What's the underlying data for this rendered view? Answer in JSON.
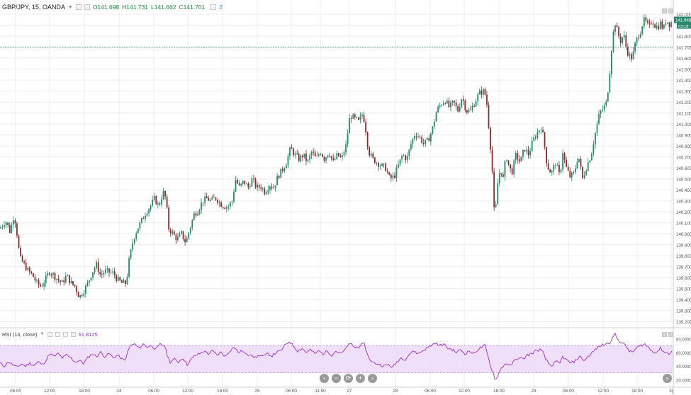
{
  "header": {
    "symbol": "GBP/JPY, 15, OANDA",
    "open": "O141.698",
    "high": "H141.731",
    "low": "L141.662",
    "close": "C141.701",
    "indicator_count": "2"
  },
  "rsi": {
    "title": "RSI (14, close)",
    "value": "61.8125",
    "axis_labels": [
      "80.0000",
      "60.0000",
      "40.0000",
      "20.0000"
    ]
  },
  "price_axis": {
    "labels": [
      "142.000",
      "141.900",
      "141.800",
      "141.700",
      "141.600",
      "141.500",
      "141.400",
      "141.300",
      "141.200",
      "141.100",
      "141.000",
      "140.900",
      "140.800",
      "140.700",
      "140.600",
      "140.500",
      "140.400",
      "140.300",
      "140.200",
      "140.100",
      "140.000",
      "139.900",
      "139.800",
      "139.700",
      "139.600",
      "139.500",
      "139.400",
      "139.300",
      "139.200"
    ],
    "last_price_tag": "141.946",
    "countdown_tag": "03:18"
  },
  "time_axis": {
    "labels": [
      "06:00",
      "12:00",
      "18:00",
      "24",
      "06:00",
      "12:00",
      "18:00",
      "25",
      "06:00",
      "11:50",
      "27",
      "28",
      "06:00",
      "12:00",
      "18:00",
      "29",
      "06:00",
      "12:00",
      "18:00",
      "3("
    ]
  },
  "nav": {
    "labels": [
      "‹",
      "−",
      "⟳",
      "+",
      "›"
    ],
    "goto": "»"
  },
  "colors": {
    "up": "#26896b",
    "down": "#8b2a2a",
    "rsi_line": "#9b30c8",
    "rsi_band": "#ecd9f7",
    "hline": "#2d7a6a",
    "grid": "#ececec"
  },
  "chart_data": [
    {
      "type": "candlestick",
      "title": "GBP/JPY, 15, OANDA",
      "ylim": [
        139.15,
        142.13
      ],
      "price_line": 141.701,
      "last_price": 141.946,
      "x_ticks": [
        "06:00",
        "12:00",
        "18:00",
        "24",
        "06:00",
        "12:00",
        "18:00",
        "25",
        "06:00",
        "11:50",
        "27",
        "28",
        "06:00",
        "12:00",
        "18:00",
        "29",
        "06:00",
        "12:00",
        "18:00",
        "3("
      ],
      "path": [
        [
          0,
          140.05
        ],
        [
          8,
          140.12
        ],
        [
          14,
          140.02
        ],
        [
          20,
          140.18
        ],
        [
          24,
          140.0
        ],
        [
          28,
          139.78
        ],
        [
          34,
          139.72
        ],
        [
          40,
          139.66
        ],
        [
          46,
          139.62
        ],
        [
          52,
          139.55
        ],
        [
          58,
          139.52
        ],
        [
          64,
          139.58
        ],
        [
          70,
          139.66
        ],
        [
          76,
          139.62
        ],
        [
          82,
          139.58
        ],
        [
          88,
          139.55
        ],
        [
          94,
          139.62
        ],
        [
          100,
          139.55
        ],
        [
          106,
          139.52
        ],
        [
          112,
          139.42
        ],
        [
          118,
          139.48
        ],
        [
          124,
          139.55
        ],
        [
          130,
          139.65
        ],
        [
          136,
          139.72
        ],
        [
          142,
          139.62
        ],
        [
          148,
          139.66
        ],
        [
          154,
          139.65
        ],
        [
          160,
          139.64
        ],
        [
          166,
          139.58
        ],
        [
          172,
          139.55
        ],
        [
          178,
          139.55
        ],
        [
          182,
          139.75
        ],
        [
          188,
          139.95
        ],
        [
          194,
          140.05
        ],
        [
          200,
          140.12
        ],
        [
          206,
          140.2
        ],
        [
          212,
          140.25
        ],
        [
          218,
          140.32
        ],
        [
          224,
          140.25
        ],
        [
          230,
          140.38
        ],
        [
          234,
          140.32
        ],
        [
          238,
          140.05
        ],
        [
          244,
          140.0
        ],
        [
          250,
          139.95
        ],
        [
          256,
          140.0
        ],
        [
          262,
          139.92
        ],
        [
          268,
          140.05
        ],
        [
          274,
          140.18
        ],
        [
          280,
          140.22
        ],
        [
          286,
          140.3
        ],
        [
          292,
          140.32
        ],
        [
          298,
          140.3
        ],
        [
          304,
          140.33
        ],
        [
          310,
          140.28
        ],
        [
          316,
          140.25
        ],
        [
          322,
          140.25
        ],
        [
          328,
          140.3
        ],
        [
          332,
          140.5
        ],
        [
          338,
          140.42
        ],
        [
          344,
          140.48
        ],
        [
          350,
          140.42
        ],
        [
          356,
          140.5
        ],
        [
          362,
          140.42
        ],
        [
          368,
          140.43
        ],
        [
          374,
          140.38
        ],
        [
          380,
          140.45
        ],
        [
          386,
          140.42
        ],
        [
          392,
          140.52
        ],
        [
          398,
          140.58
        ],
        [
          404,
          140.65
        ],
        [
          410,
          140.78
        ],
        [
          416,
          140.72
        ],
        [
          422,
          140.68
        ],
        [
          428,
          140.72
        ],
        [
          434,
          140.65
        ],
        [
          440,
          140.75
        ],
        [
          446,
          140.68
        ],
        [
          452,
          140.75
        ],
        [
          458,
          140.68
        ],
        [
          464,
          140.75
        ],
        [
          470,
          140.65
        ],
        [
          476,
          140.72
        ],
        [
          482,
          140.68
        ],
        [
          488,
          140.8
        ],
        [
          494,
          141.08
        ],
        [
          500,
          141.05
        ],
        [
          506,
          141.02
        ],
        [
          512,
          141.1
        ],
        [
          516,
          140.95
        ],
        [
          520,
          140.75
        ],
        [
          526,
          140.68
        ],
        [
          532,
          140.65
        ],
        [
          538,
          140.62
        ],
        [
          544,
          140.6
        ],
        [
          550,
          140.5
        ],
        [
          556,
          140.52
        ],
        [
          562,
          140.62
        ],
        [
          568,
          140.72
        ],
        [
          574,
          140.68
        ],
        [
          580,
          140.82
        ],
        [
          586,
          140.92
        ],
        [
          592,
          140.88
        ],
        [
          598,
          140.82
        ],
        [
          604,
          140.85
        ],
        [
          610,
          140.95
        ],
        [
          616,
          141.12
        ],
        [
          622,
          141.18
        ],
        [
          628,
          141.22
        ],
        [
          634,
          141.15
        ],
        [
          640,
          141.2
        ],
        [
          646,
          141.12
        ],
        [
          652,
          141.25
        ],
        [
          658,
          141.12
        ],
        [
          664,
          141.12
        ],
        [
          670,
          141.2
        ],
        [
          676,
          141.28
        ],
        [
          682,
          141.3
        ],
        [
          686,
          141.25
        ],
        [
          690,
          140.95
        ],
        [
          694,
          140.65
        ],
        [
          698,
          140.1
        ],
        [
          702,
          140.45
        ],
        [
          706,
          140.6
        ],
        [
          710,
          140.5
        ],
        [
          714,
          140.72
        ],
        [
          718,
          140.62
        ],
        [
          722,
          140.55
        ],
        [
          728,
          140.72
        ],
        [
          734,
          140.65
        ],
        [
          740,
          140.78
        ],
        [
          746,
          140.72
        ],
        [
          752,
          140.85
        ],
        [
          758,
          140.92
        ],
        [
          764,
          140.98
        ],
        [
          768,
          140.82
        ],
        [
          772,
          140.62
        ],
        [
          778,
          140.55
        ],
        [
          784,
          140.65
        ],
        [
          790,
          140.52
        ],
        [
          794,
          140.75
        ],
        [
          798,
          140.62
        ],
        [
          804,
          140.52
        ],
        [
          810,
          140.55
        ],
        [
          816,
          140.72
        ],
        [
          822,
          140.5
        ],
        [
          828,
          140.62
        ],
        [
          834,
          140.72
        ],
        [
          840,
          140.92
        ],
        [
          846,
          141.1
        ],
        [
          852,
          141.15
        ],
        [
          856,
          141.2
        ],
        [
          860,
          141.45
        ],
        [
          864,
          141.78
        ],
        [
          868,
          141.92
        ],
        [
          872,
          141.82
        ],
        [
          876,
          141.75
        ],
        [
          880,
          141.82
        ],
        [
          884,
          141.68
        ],
        [
          888,
          141.62
        ],
        [
          892,
          141.6
        ],
        [
          896,
          141.72
        ],
        [
          900,
          141.8
        ],
        [
          904,
          141.85
        ],
        [
          908,
          141.95
        ],
        [
          912,
          141.92
        ],
        [
          916,
          141.88
        ],
        [
          920,
          141.95
        ],
        [
          924,
          141.9
        ],
        [
          928,
          141.88
        ],
        [
          932,
          141.92
        ],
        [
          936,
          141.86
        ],
        [
          940,
          141.95
        ],
        [
          946,
          141.9
        ],
        [
          948,
          141.95
        ]
      ]
    },
    {
      "type": "line",
      "title": "RSI (14, close)",
      "ylim": [
        10,
        95
      ],
      "band": [
        30,
        70
      ],
      "path": [
        [
          0,
          44
        ],
        [
          6,
          40
        ],
        [
          12,
          46
        ],
        [
          18,
          42
        ],
        [
          24,
          38
        ],
        [
          30,
          43
        ],
        [
          36,
          40
        ],
        [
          42,
          44
        ],
        [
          48,
          41
        ],
        [
          54,
          46
        ],
        [
          60,
          42
        ],
        [
          66,
          50
        ],
        [
          70,
          58
        ],
        [
          76,
          54
        ],
        [
          82,
          58
        ],
        [
          88,
          52
        ],
        [
          94,
          56
        ],
        [
          100,
          52
        ],
        [
          106,
          46
        ],
        [
          112,
          48
        ],
        [
          118,
          44
        ],
        [
          124,
          52
        ],
        [
          130,
          58
        ],
        [
          136,
          54
        ],
        [
          142,
          60
        ],
        [
          148,
          54
        ],
        [
          154,
          58
        ],
        [
          160,
          52
        ],
        [
          166,
          56
        ],
        [
          172,
          50
        ],
        [
          176,
          48
        ],
        [
          180,
          60
        ],
        [
          184,
          70
        ],
        [
          190,
          72
        ],
        [
          196,
          66
        ],
        [
          202,
          72
        ],
        [
          208,
          68
        ],
        [
          214,
          70
        ],
        [
          220,
          64
        ],
        [
          226,
          72
        ],
        [
          232,
          70
        ],
        [
          236,
          56
        ],
        [
          240,
          46
        ],
        [
          246,
          50
        ],
        [
          252,
          46
        ],
        [
          258,
          52
        ],
        [
          264,
          42
        ],
        [
          270,
          50
        ],
        [
          276,
          56
        ],
        [
          282,
          58
        ],
        [
          288,
          62
        ],
        [
          294,
          58
        ],
        [
          300,
          62
        ],
        [
          306,
          56
        ],
        [
          312,
          60
        ],
        [
          318,
          54
        ],
        [
          324,
          62
        ],
        [
          330,
          68
        ],
        [
          336,
          60
        ],
        [
          342,
          62
        ],
        [
          348,
          56
        ],
        [
          354,
          58
        ],
        [
          360,
          52
        ],
        [
          366,
          56
        ],
        [
          372,
          54
        ],
        [
          378,
          58
        ],
        [
          384,
          55
        ],
        [
          390,
          60
        ],
        [
          396,
          62
        ],
        [
          402,
          70
        ],
        [
          408,
          76
        ],
        [
          414,
          70
        ],
        [
          420,
          62
        ],
        [
          426,
          66
        ],
        [
          432,
          60
        ],
        [
          438,
          64
        ],
        [
          444,
          58
        ],
        [
          450,
          62
        ],
        [
          456,
          58
        ],
        [
          462,
          62
        ],
        [
          468,
          56
        ],
        [
          474,
          62
        ],
        [
          480,
          58
        ],
        [
          486,
          62
        ],
        [
          490,
          70
        ],
        [
          496,
          72
        ],
        [
          502,
          66
        ],
        [
          508,
          70
        ],
        [
          514,
          72
        ],
        [
          518,
          58
        ],
        [
          524,
          46
        ],
        [
          530,
          44
        ],
        [
          536,
          42
        ],
        [
          542,
          40
        ],
        [
          548,
          42
        ],
        [
          554,
          38
        ],
        [
          560,
          46
        ],
        [
          566,
          52
        ],
        [
          572,
          50
        ],
        [
          578,
          58
        ],
        [
          584,
          62
        ],
        [
          590,
          58
        ],
        [
          596,
          62
        ],
        [
          602,
          66
        ],
        [
          608,
          70
        ],
        [
          614,
          74
        ],
        [
          620,
          70
        ],
        [
          626,
          72
        ],
        [
          632,
          66
        ],
        [
          638,
          64
        ],
        [
          644,
          60
        ],
        [
          650,
          64
        ],
        [
          656,
          58
        ],
        [
          662,
          62
        ],
        [
          668,
          58
        ],
        [
          674,
          64
        ],
        [
          680,
          68
        ],
        [
          684,
          70
        ],
        [
          688,
          56
        ],
        [
          692,
          40
        ],
        [
          696,
          30
        ],
        [
          699,
          18
        ],
        [
          703,
          28
        ],
        [
          708,
          38
        ],
        [
          714,
          44
        ],
        [
          720,
          40
        ],
        [
          726,
          48
        ],
        [
          732,
          52
        ],
        [
          738,
          50
        ],
        [
          744,
          56
        ],
        [
          750,
          58
        ],
        [
          756,
          62
        ],
        [
          762,
          64
        ],
        [
          766,
          60
        ],
        [
          770,
          50
        ],
        [
          774,
          44
        ],
        [
          778,
          40
        ],
        [
          784,
          46
        ],
        [
          790,
          44
        ],
        [
          794,
          54
        ],
        [
          800,
          48
        ],
        [
          806,
          44
        ],
        [
          812,
          48
        ],
        [
          818,
          54
        ],
        [
          824,
          48
        ],
        [
          830,
          54
        ],
        [
          836,
          60
        ],
        [
          842,
          66
        ],
        [
          848,
          70
        ],
        [
          854,
          72
        ],
        [
          860,
          74
        ],
        [
          864,
          82
        ],
        [
          868,
          86
        ],
        [
          872,
          78
        ],
        [
          878,
          74
        ],
        [
          884,
          68
        ],
        [
          888,
          62
        ],
        [
          892,
          60
        ],
        [
          898,
          66
        ],
        [
          904,
          70
        ],
        [
          910,
          72
        ],
        [
          916,
          66
        ],
        [
          920,
          62
        ],
        [
          926,
          60
        ],
        [
          932,
          66
        ],
        [
          938,
          60
        ],
        [
          944,
          58
        ],
        [
          948,
          62
        ]
      ]
    }
  ]
}
